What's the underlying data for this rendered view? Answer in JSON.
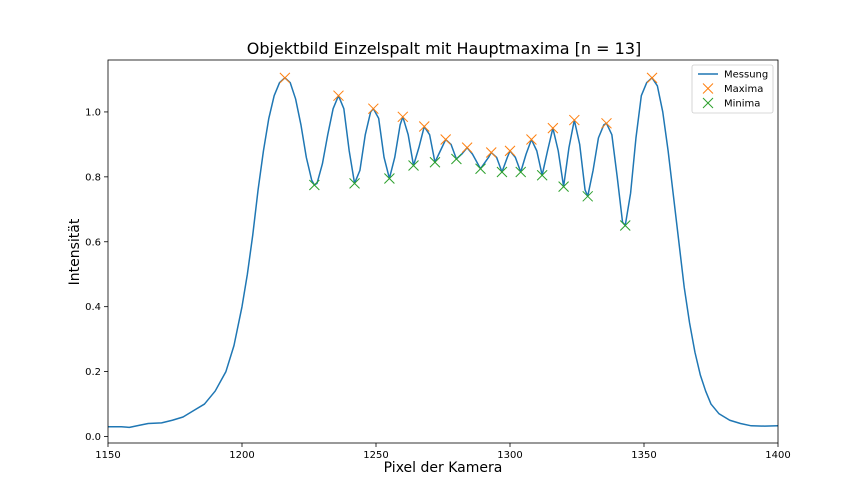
{
  "chart_data": {
    "type": "line",
    "title": "Objektbild Einzelspalt mit Hauptmaxima [n = 13]",
    "xlabel": "Pixel der Kamera",
    "ylabel": "Intensität",
    "xlim": [
      1150,
      1400
    ],
    "ylim": [
      -0.02,
      1.16
    ],
    "xticks": [
      1150,
      1200,
      1250,
      1300,
      1350,
      1400
    ],
    "yticks": [
      0.0,
      0.2,
      0.4,
      0.6,
      0.8,
      1.0
    ],
    "xtick_labels": [
      "1150",
      "1200",
      "1250",
      "1300",
      "1350",
      "1400"
    ],
    "ytick_labels": [
      "0.0",
      "0.2",
      "0.4",
      "0.6",
      "0.8",
      "1.0"
    ],
    "grid": false,
    "legend_position": "top-right",
    "colors": {
      "line": "#1f77b4",
      "maxima": "#ff7f0e",
      "minima": "#2ca02c"
    },
    "series": [
      {
        "name": "Messung",
        "kind": "line",
        "points": [
          [
            1150,
            0.03
          ],
          [
            1155,
            0.03
          ],
          [
            1158,
            0.028
          ],
          [
            1162,
            0.035
          ],
          [
            1165,
            0.04
          ],
          [
            1170,
            0.042
          ],
          [
            1174,
            0.05
          ],
          [
            1178,
            0.06
          ],
          [
            1182,
            0.08
          ],
          [
            1186,
            0.1
          ],
          [
            1190,
            0.14
          ],
          [
            1194,
            0.2
          ],
          [
            1197,
            0.28
          ],
          [
            1200,
            0.4
          ],
          [
            1202,
            0.5
          ],
          [
            1204,
            0.62
          ],
          [
            1206,
            0.76
          ],
          [
            1208,
            0.88
          ],
          [
            1210,
            0.98
          ],
          [
            1212,
            1.05
          ],
          [
            1214,
            1.09
          ],
          [
            1216,
            1.105
          ],
          [
            1218,
            1.09
          ],
          [
            1220,
            1.04
          ],
          [
            1222,
            0.96
          ],
          [
            1224,
            0.86
          ],
          [
            1226,
            0.79
          ],
          [
            1227,
            0.775
          ],
          [
            1228,
            0.78
          ],
          [
            1230,
            0.84
          ],
          [
            1232,
            0.93
          ],
          [
            1234,
            1.01
          ],
          [
            1236,
            1.05
          ],
          [
            1238,
            1.01
          ],
          [
            1240,
            0.88
          ],
          [
            1242,
            0.78
          ],
          [
            1244,
            0.82
          ],
          [
            1246,
            0.93
          ],
          [
            1248,
            1.0
          ],
          [
            1249,
            1.01
          ],
          [
            1251,
            0.98
          ],
          [
            1253,
            0.86
          ],
          [
            1255,
            0.795
          ],
          [
            1257,
            0.86
          ],
          [
            1259,
            0.96
          ],
          [
            1260,
            0.985
          ],
          [
            1262,
            0.93
          ],
          [
            1264,
            0.835
          ],
          [
            1266,
            0.89
          ],
          [
            1268,
            0.955
          ],
          [
            1270,
            0.93
          ],
          [
            1272,
            0.845
          ],
          [
            1274,
            0.88
          ],
          [
            1276,
            0.915
          ],
          [
            1278,
            0.9
          ],
          [
            1280,
            0.855
          ],
          [
            1282,
            0.87
          ],
          [
            1284,
            0.89
          ],
          [
            1286,
            0.87
          ],
          [
            1289,
            0.825
          ],
          [
            1292,
            0.86
          ],
          [
            1293,
            0.875
          ],
          [
            1295,
            0.86
          ],
          [
            1297,
            0.815
          ],
          [
            1299,
            0.86
          ],
          [
            1300,
            0.88
          ],
          [
            1302,
            0.86
          ],
          [
            1304,
            0.815
          ],
          [
            1306,
            0.87
          ],
          [
            1308,
            0.915
          ],
          [
            1310,
            0.88
          ],
          [
            1312,
            0.805
          ],
          [
            1314,
            0.88
          ],
          [
            1316,
            0.95
          ],
          [
            1318,
            0.88
          ],
          [
            1320,
            0.77
          ],
          [
            1322,
            0.89
          ],
          [
            1324,
            0.975
          ],
          [
            1326,
            0.9
          ],
          [
            1328,
            0.76
          ],
          [
            1329,
            0.74
          ],
          [
            1331,
            0.82
          ],
          [
            1333,
            0.92
          ],
          [
            1335,
            0.96
          ],
          [
            1336,
            0.965
          ],
          [
            1338,
            0.93
          ],
          [
            1340,
            0.8
          ],
          [
            1342,
            0.66
          ],
          [
            1343,
            0.65
          ],
          [
            1345,
            0.75
          ],
          [
            1347,
            0.92
          ],
          [
            1349,
            1.05
          ],
          [
            1351,
            1.09
          ],
          [
            1353,
            1.105
          ],
          [
            1355,
            1.08
          ],
          [
            1357,
            1.0
          ],
          [
            1359,
            0.88
          ],
          [
            1361,
            0.74
          ],
          [
            1363,
            0.6
          ],
          [
            1365,
            0.46
          ],
          [
            1367,
            0.35
          ],
          [
            1369,
            0.26
          ],
          [
            1371,
            0.19
          ],
          [
            1373,
            0.14
          ],
          [
            1375,
            0.1
          ],
          [
            1378,
            0.07
          ],
          [
            1382,
            0.05
          ],
          [
            1386,
            0.04
          ],
          [
            1390,
            0.033
          ],
          [
            1395,
            0.032
          ],
          [
            1400,
            0.033
          ]
        ]
      },
      {
        "name": "Maxima",
        "kind": "marker",
        "points": [
          [
            1216,
            1.105
          ],
          [
            1236,
            1.05
          ],
          [
            1249,
            1.01
          ],
          [
            1260,
            0.985
          ],
          [
            1268,
            0.955
          ],
          [
            1276,
            0.915
          ],
          [
            1284,
            0.89
          ],
          [
            1293,
            0.875
          ],
          [
            1300,
            0.88
          ],
          [
            1308,
            0.915
          ],
          [
            1316,
            0.95
          ],
          [
            1324,
            0.975
          ],
          [
            1336,
            0.965
          ],
          [
            1353,
            1.105
          ]
        ]
      },
      {
        "name": "Minima",
        "kind": "marker",
        "points": [
          [
            1227,
            0.775
          ],
          [
            1242,
            0.78
          ],
          [
            1255,
            0.795
          ],
          [
            1264,
            0.835
          ],
          [
            1272,
            0.845
          ],
          [
            1280,
            0.855
          ],
          [
            1289,
            0.825
          ],
          [
            1297,
            0.815
          ],
          [
            1304,
            0.815
          ],
          [
            1312,
            0.805
          ],
          [
            1320,
            0.77
          ],
          [
            1329,
            0.74
          ],
          [
            1343,
            0.65
          ]
        ]
      }
    ]
  }
}
